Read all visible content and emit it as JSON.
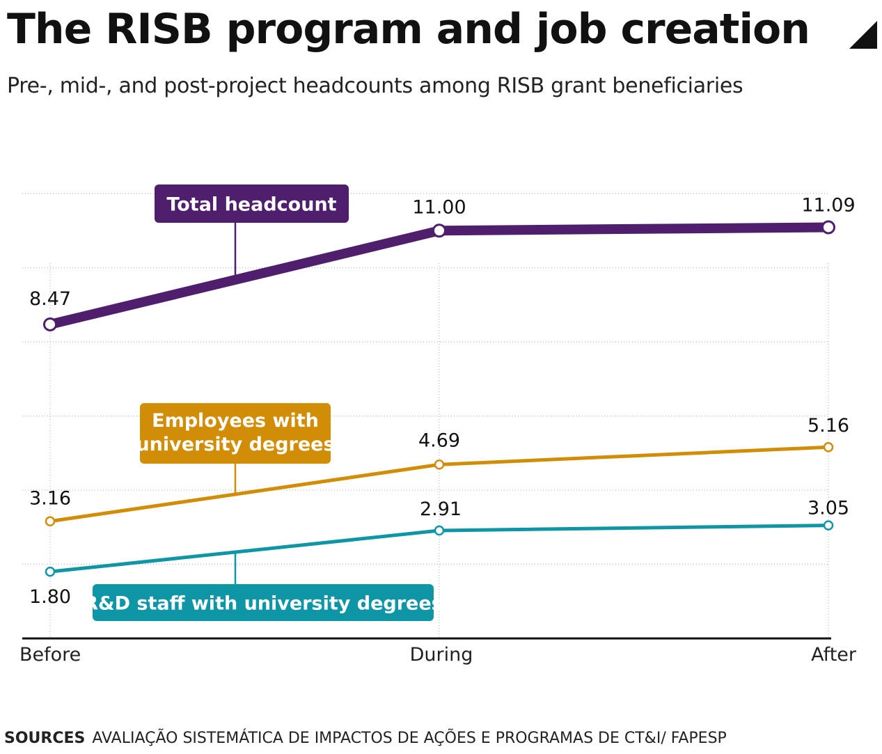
{
  "title": "The RISB program and job creation",
  "subtitle": "Pre-, mid-, and post-project headcounts among RISB grant beneficiaries",
  "source_label": "SOURCES",
  "source_text": "AVALIAÇÃO SISTEMÁTICA DE IMPACTOS DE AÇÕES E PROGRAMAS DE CT&I/ FAPESP",
  "chart_data": {
    "type": "line",
    "categories": [
      "Before",
      "During",
      "After"
    ],
    "ylim": [
      0,
      12
    ],
    "grid": true,
    "series": [
      {
        "name": "Total headcount",
        "values": [
          8.47,
          11.0,
          11.09
        ],
        "labels": [
          "8.47",
          "11.00",
          "11.09"
        ],
        "color": "#4f1f6e"
      },
      {
        "name": "Employees with university degrees",
        "values": [
          3.16,
          4.69,
          5.16
        ],
        "labels": [
          "3.16",
          "4.69",
          "5.16"
        ],
        "color": "#d18d05"
      },
      {
        "name": "R&D staff with university degrees",
        "values": [
          1.8,
          2.91,
          3.05
        ],
        "labels": [
          "1.80",
          "2.91",
          "3.05"
        ],
        "color": "#0e96a6"
      }
    ]
  }
}
